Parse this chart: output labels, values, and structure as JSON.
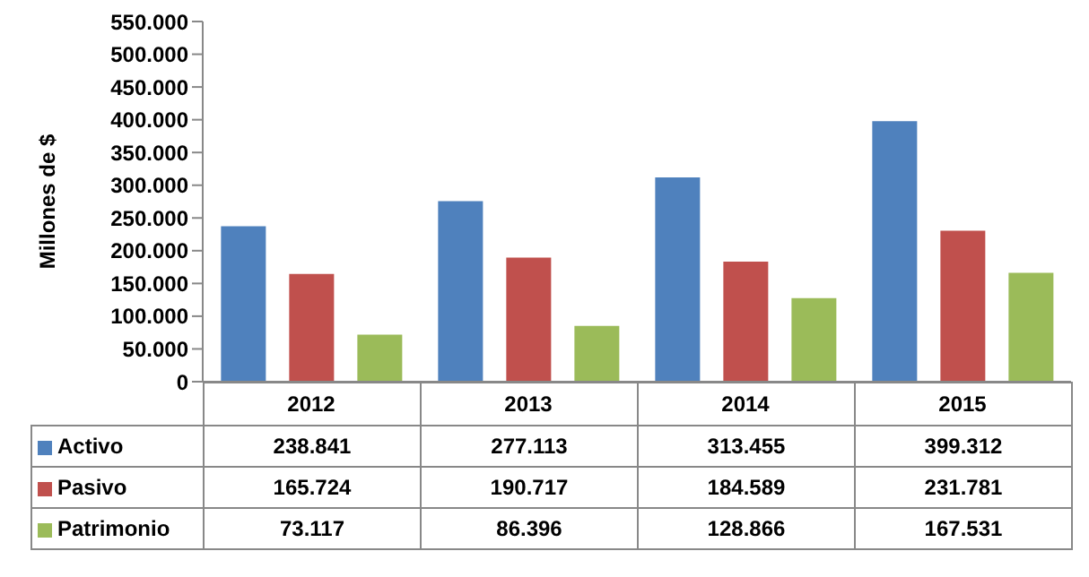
{
  "chart_data": {
    "type": "bar",
    "ylabel": "Millones de $",
    "categories": [
      "2012",
      "2013",
      "2014",
      "2015"
    ],
    "series": [
      {
        "name": "Activo",
        "color": "#4f81bd",
        "values": [
          238841,
          277113,
          313455,
          399312
        ],
        "value_labels": [
          "238.841",
          "277.113",
          "313.455",
          "399.312"
        ]
      },
      {
        "name": "Pasivo",
        "color": "#c0504d",
        "values": [
          165724,
          190717,
          184589,
          231781
        ],
        "value_labels": [
          "165.724",
          "190.717",
          "184.589",
          "231.781"
        ]
      },
      {
        "name": "Patrimonio",
        "color": "#9bbb59",
        "values": [
          73117,
          86396,
          128866,
          167531
        ],
        "value_labels": [
          "73.117",
          "86.396",
          "128.866",
          "167.531"
        ]
      }
    ],
    "ylim": [
      0,
      550000
    ],
    "yticks": [
      {
        "value": 0,
        "label": "0"
      },
      {
        "value": 50000,
        "label": "50.000"
      },
      {
        "value": 100000,
        "label": "100.000"
      },
      {
        "value": 150000,
        "label": "150.000"
      },
      {
        "value": 200000,
        "label": "200.000"
      },
      {
        "value": 250000,
        "label": "250.000"
      },
      {
        "value": 300000,
        "label": "300.000"
      },
      {
        "value": 350000,
        "label": "350.000"
      },
      {
        "value": 400000,
        "label": "400.000"
      },
      {
        "value": 450000,
        "label": "450.000"
      },
      {
        "value": 500000,
        "label": "500.000"
      },
      {
        "value": 550000,
        "label": "550.000"
      }
    ],
    "legend": "bottom",
    "grid": false
  }
}
